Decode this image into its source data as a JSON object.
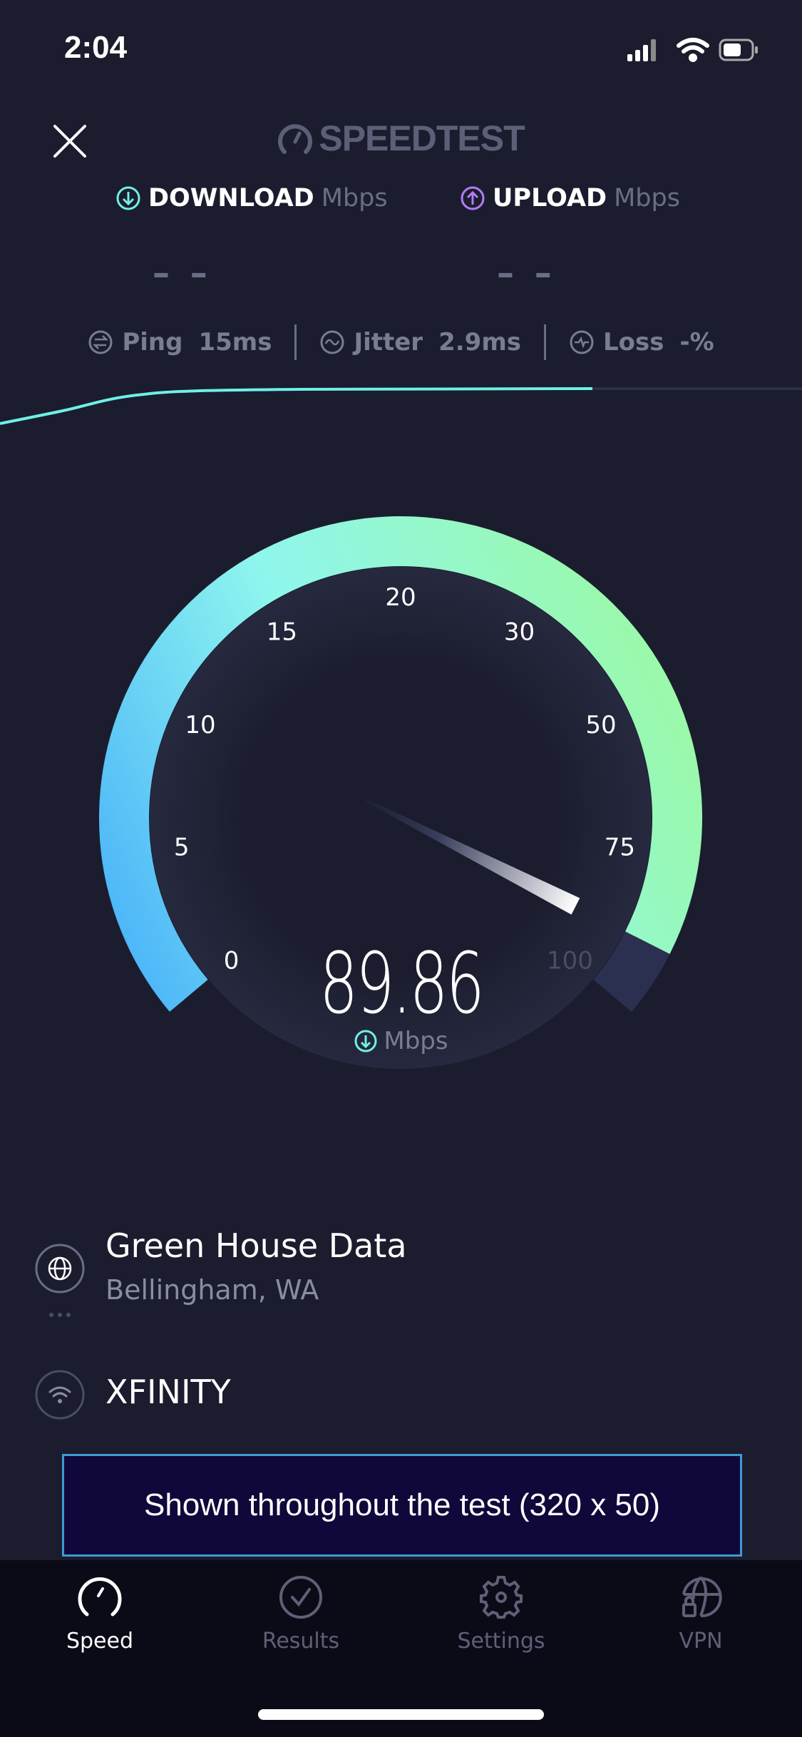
{
  "status_bar": {
    "time": "2:04",
    "icons": [
      "cellular-signal-icon",
      "wifi-icon",
      "battery-icon"
    ]
  },
  "header": {
    "logo_text": "SPEEDTEST",
    "close_icon": "close-icon"
  },
  "download": {
    "label": "DOWNLOAD",
    "unit": "Mbps",
    "value": "– –",
    "color": "#6ff0e6"
  },
  "upload": {
    "label": "UPLOAD",
    "unit": "Mbps",
    "value": "– –",
    "color": "#b37cf5"
  },
  "metrics": {
    "ping": {
      "label": "Ping",
      "value": "15",
      "unit": "ms"
    },
    "jitter": {
      "label": "Jitter",
      "value": "2.9",
      "unit": "ms"
    },
    "loss": {
      "label": "Loss",
      "value": "-%"
    }
  },
  "gauge": {
    "ticks": [
      "0",
      "5",
      "10",
      "15",
      "20",
      "30",
      "50",
      "75",
      "100"
    ],
    "value": 89.86,
    "value_text": "89.86",
    "unit": "Mbps",
    "colors": {
      "start": "#4ab3f9",
      "mid": "#8ff6ee",
      "end": "#9cf99f",
      "track": "#2c3050"
    }
  },
  "server": {
    "name": "Green House Data",
    "location": "Bellingham, WA"
  },
  "isp": {
    "name": "XFINITY"
  },
  "ad": {
    "text": "Shown throughout the test (320 x 50)"
  },
  "tabs": [
    {
      "label": "Speed",
      "icon": "speedometer-icon",
      "active": true
    },
    {
      "label": "Results",
      "icon": "check-circle-icon",
      "active": false
    },
    {
      "label": "Settings",
      "icon": "gear-icon",
      "active": false
    },
    {
      "label": "VPN",
      "icon": "globe-lock-icon",
      "active": false
    }
  ]
}
